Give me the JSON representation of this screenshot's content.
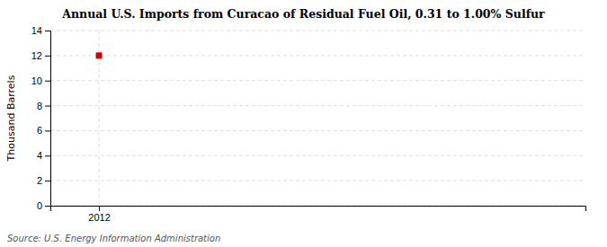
{
  "chart_data": {
    "type": "scatter",
    "title": "Annual U.S. Imports from Curacao of Residual Fuel Oil, 0.31 to 1.00% Sulfur",
    "y_label": "Thousand Barrels",
    "source": "Source: U.S. Energy Information Administration",
    "x": [
      2012
    ],
    "values": [
      12
    ],
    "color": "#cc0000",
    "marker": "square",
    "xlim": [
      2011.5,
      2017.0
    ],
    "ylim": [
      0,
      14
    ],
    "xticks": [
      2012
    ],
    "yticks": [
      0,
      2,
      4,
      6,
      8,
      10,
      12,
      14
    ],
    "grid": true
  }
}
